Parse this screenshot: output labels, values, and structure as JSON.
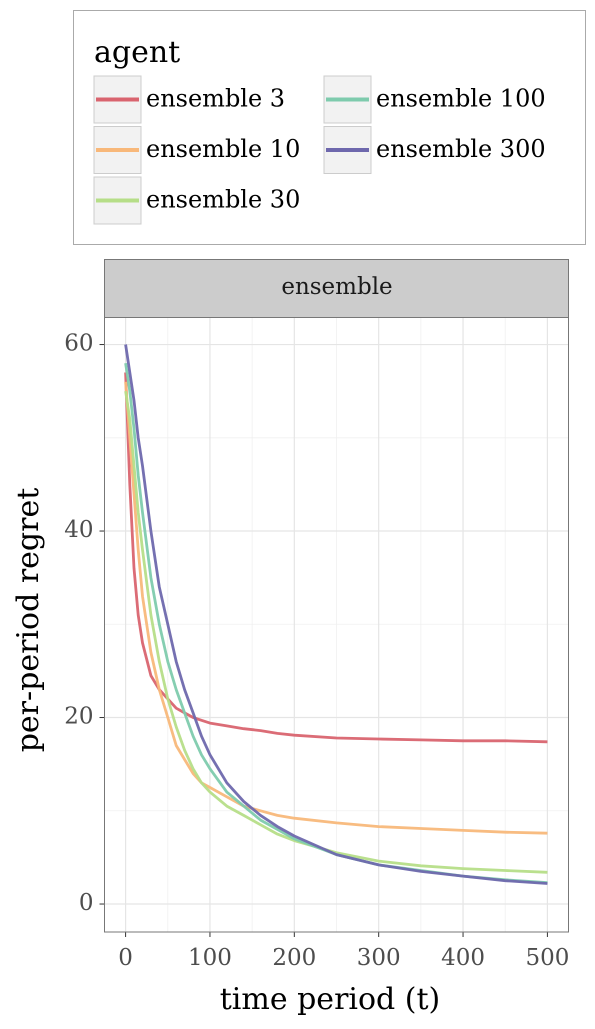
{
  "chart_data": {
    "type": "line",
    "legend_title": "agent",
    "legend_position": "top",
    "facet": "ensemble",
    "x_label": "time period (t)",
    "y_label": "per-period regret",
    "x": [
      0,
      5,
      10,
      15,
      20,
      30,
      40,
      50,
      60,
      70,
      80,
      90,
      100,
      120,
      140,
      160,
      180,
      200,
      250,
      300,
      350,
      400,
      450,
      500
    ],
    "series": [
      {
        "name": "ensemble 3",
        "color": "#d9646f",
        "values": [
          57,
          45,
          36,
          31,
          28,
          24.5,
          23,
          22,
          21,
          20.5,
          20,
          19.7,
          19.4,
          19.1,
          18.8,
          18.6,
          18.3,
          18.1,
          17.8,
          17.7,
          17.6,
          17.5,
          17.5,
          17.4
        ]
      },
      {
        "name": "ensemble 10",
        "color": "#f8b87a",
        "values": [
          56,
          50,
          44,
          38,
          33,
          27,
          23,
          20,
          17,
          15.5,
          14,
          13,
          12.5,
          11.5,
          10.5,
          10,
          9.5,
          9.2,
          8.7,
          8.3,
          8.1,
          7.9,
          7.7,
          7.6
        ]
      },
      {
        "name": "ensemble 30",
        "color": "#b6de88",
        "values": [
          55,
          52,
          47,
          42,
          38,
          31,
          26,
          22,
          19,
          16.5,
          14.5,
          13,
          12,
          10.5,
          9.5,
          8.5,
          7.5,
          6.8,
          5.5,
          4.6,
          4.1,
          3.8,
          3.6,
          3.4
        ]
      },
      {
        "name": "ensemble 100",
        "color": "#7ecbad",
        "values": [
          58,
          55,
          51,
          46,
          42,
          35,
          30,
          26,
          23,
          20.5,
          18,
          16,
          14.5,
          12,
          10.5,
          9,
          8,
          7,
          5.3,
          4.2,
          3.6,
          3,
          2.6,
          2.3
        ]
      },
      {
        "name": "ensemble 300",
        "color": "#6e68ad",
        "values": [
          60,
          57,
          54,
          50,
          47,
          40,
          34,
          30,
          26,
          23,
          20.5,
          18,
          16,
          13,
          11,
          9.5,
          8.3,
          7.3,
          5.3,
          4.2,
          3.5,
          3,
          2.5,
          2.2
        ]
      }
    ],
    "xlim": [
      -25,
      525
    ],
    "xticks": [
      0,
      100,
      200,
      300,
      400,
      500
    ],
    "ylim": [
      -3,
      62.9
    ],
    "yticks": [
      0,
      20,
      40,
      60
    ],
    "grid": true
  }
}
